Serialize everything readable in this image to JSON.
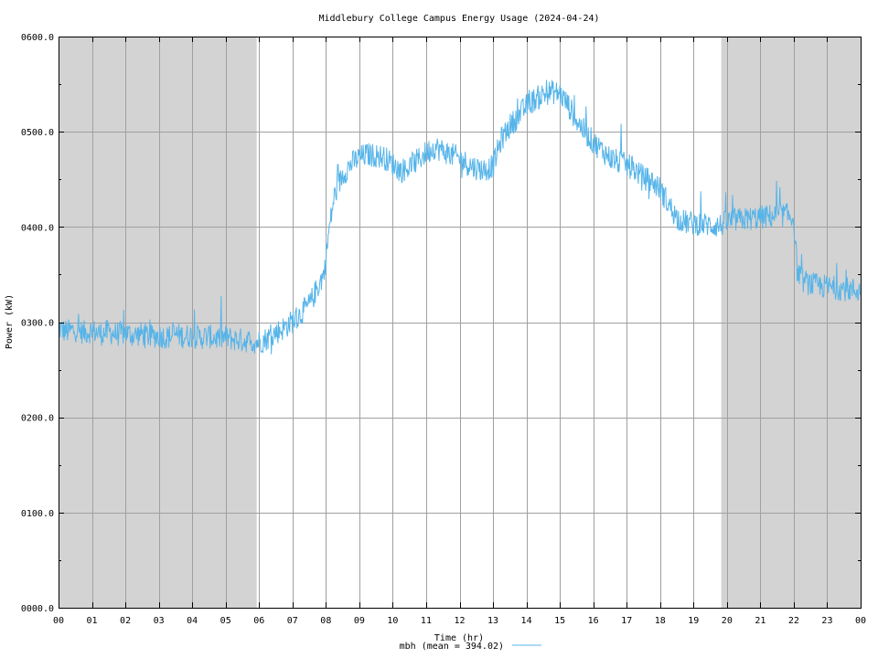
{
  "chart_data": {
    "type": "line",
    "title": "Middlebury College Campus Energy Usage (2024-04-24)",
    "xlabel": "Time (hr)",
    "ylabel": "Power (kW)",
    "xlim": [
      0,
      24
    ],
    "ylim": [
      0,
      600
    ],
    "x_tick_labels": [
      "00",
      "01",
      "02",
      "03",
      "04",
      "05",
      "06",
      "07",
      "08",
      "09",
      "10",
      "11",
      "12",
      "13",
      "14",
      "15",
      "16",
      "17",
      "18",
      "19",
      "20",
      "21",
      "22",
      "23",
      "00"
    ],
    "y_tick_labels": [
      "0000.0",
      "0100.0",
      "0200.0",
      "0300.0",
      "0400.0",
      "0500.0",
      "0600.0"
    ],
    "y_ticks": [
      0,
      100,
      200,
      300,
      400,
      500,
      600
    ],
    "grid": true,
    "shaded_periods_hr": [
      [
        0,
        5.93
      ],
      [
        19.83,
        24
      ]
    ],
    "shade_color": "#d3d3d3",
    "series": [
      {
        "name": "mbh (mean = 394.02)",
        "color": "#56b4e9",
        "x": [
          0,
          0.25,
          0.5,
          0.75,
          1,
          1.25,
          1.5,
          1.75,
          2,
          2.25,
          2.5,
          2.75,
          3,
          3.25,
          3.5,
          3.75,
          4,
          4.25,
          4.5,
          4.75,
          5,
          5.25,
          5.5,
          5.75,
          5.95,
          6.25,
          6.5,
          6.75,
          7,
          7.25,
          7.5,
          7.75,
          7.95,
          8.1,
          8.25,
          8.5,
          8.75,
          9,
          9.25,
          9.5,
          9.75,
          10,
          10.25,
          10.5,
          10.75,
          11,
          11.25,
          11.5,
          11.75,
          12,
          12.25,
          12.5,
          12.75,
          13,
          13.25,
          13.5,
          13.75,
          14,
          14.25,
          14.5,
          14.75,
          15,
          15.25,
          15.5,
          15.75,
          16,
          16.25,
          16.5,
          16.75,
          17,
          17.25,
          17.5,
          17.75,
          18,
          18.25,
          18.5,
          18.75,
          19,
          19.25,
          19.5,
          19.75,
          20,
          20.25,
          20.5,
          20.75,
          21,
          21.25,
          21.5,
          21.75,
          22,
          22.1,
          22.25,
          22.5,
          22.75,
          23,
          23.25,
          23.5,
          23.75,
          24
        ],
        "y": [
          293,
          290,
          292,
          289,
          291,
          288,
          290,
          287,
          289,
          286,
          288,
          285,
          286,
          284,
          287,
          285,
          286,
          284,
          285,
          283,
          284,
          282,
          281,
          280,
          279,
          283,
          289,
          294,
          301,
          309,
          318,
          336,
          352,
          398,
          432,
          455,
          466,
          473,
          476,
          475,
          473,
          466,
          459,
          463,
          470,
          478,
          484,
          480,
          476,
          472,
          466,
          462,
          460,
          464,
          492,
          506,
          516,
          527,
          534,
          539,
          542,
          540,
          528,
          512,
          500,
          489,
          481,
          473,
          468,
          465,
          460,
          452,
          448,
          440,
          424,
          410,
          405,
          404,
          403,
          402,
          401,
          405,
          407,
          408,
          409,
          410,
          411,
          412,
          413,
          409,
          355,
          344,
          340,
          338,
          337,
          336,
          335,
          334,
          333
        ]
      }
    ]
  }
}
